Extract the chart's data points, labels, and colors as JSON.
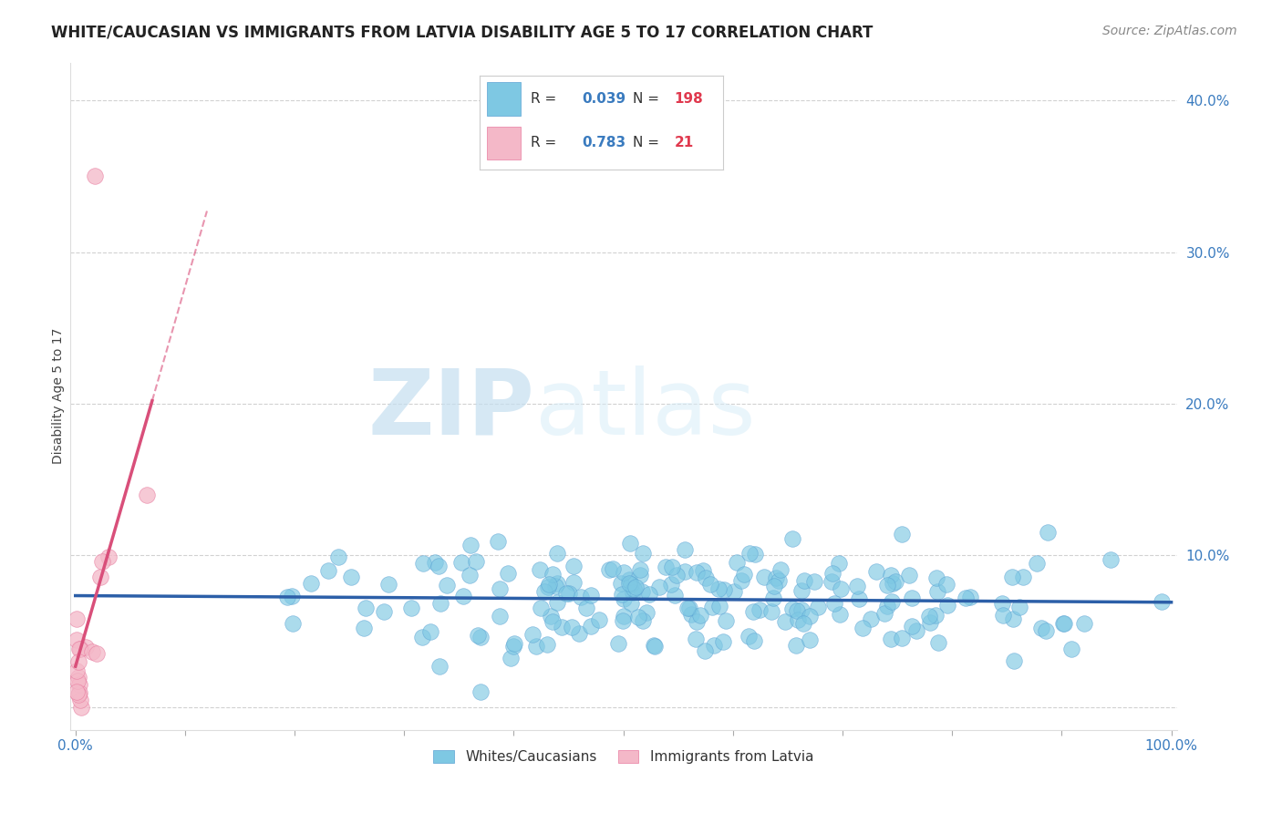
{
  "title": "WHITE/CAUCASIAN VS IMMIGRANTS FROM LATVIA DISABILITY AGE 5 TO 17 CORRELATION CHART",
  "source": "Source: ZipAtlas.com",
  "ylabel": "Disability Age 5 to 17",
  "xlim": [
    -0.005,
    1.005
  ],
  "ylim": [
    -0.015,
    0.425
  ],
  "xticks": [
    0.0,
    0.1,
    0.2,
    0.3,
    0.4,
    0.5,
    0.6,
    0.7,
    0.8,
    0.9,
    1.0
  ],
  "xticklabels": [
    "0.0%",
    "",
    "",
    "",
    "",
    "",
    "",
    "",
    "",
    "",
    "100.0%"
  ],
  "yticks_right": [
    0.0,
    0.1,
    0.2,
    0.3,
    0.4
  ],
  "ytick_right_labels": [
    "",
    "10.0%",
    "20.0%",
    "30.0%",
    "40.0%"
  ],
  "blue_color": "#7ec8e3",
  "blue_edge_color": "#5ba3d4",
  "blue_line_color": "#2c5fa8",
  "pink_color": "#f4b8c8",
  "pink_edge_color": "#e87ca0",
  "pink_line_color": "#d94f7a",
  "watermark_zip": "ZIP",
  "watermark_atlas": "atlas",
  "legend_R1": "0.039",
  "legend_N1": "198",
  "legend_R2": "0.783",
  "legend_N2": "21",
  "legend_label1": "Whites/Caucasians",
  "legend_label2": "Immigrants from Latvia",
  "grid_color": "#cccccc",
  "background_color": "#ffffff",
  "title_fontsize": 12,
  "axis_label_fontsize": 10,
  "tick_fontsize": 11,
  "source_fontsize": 10
}
